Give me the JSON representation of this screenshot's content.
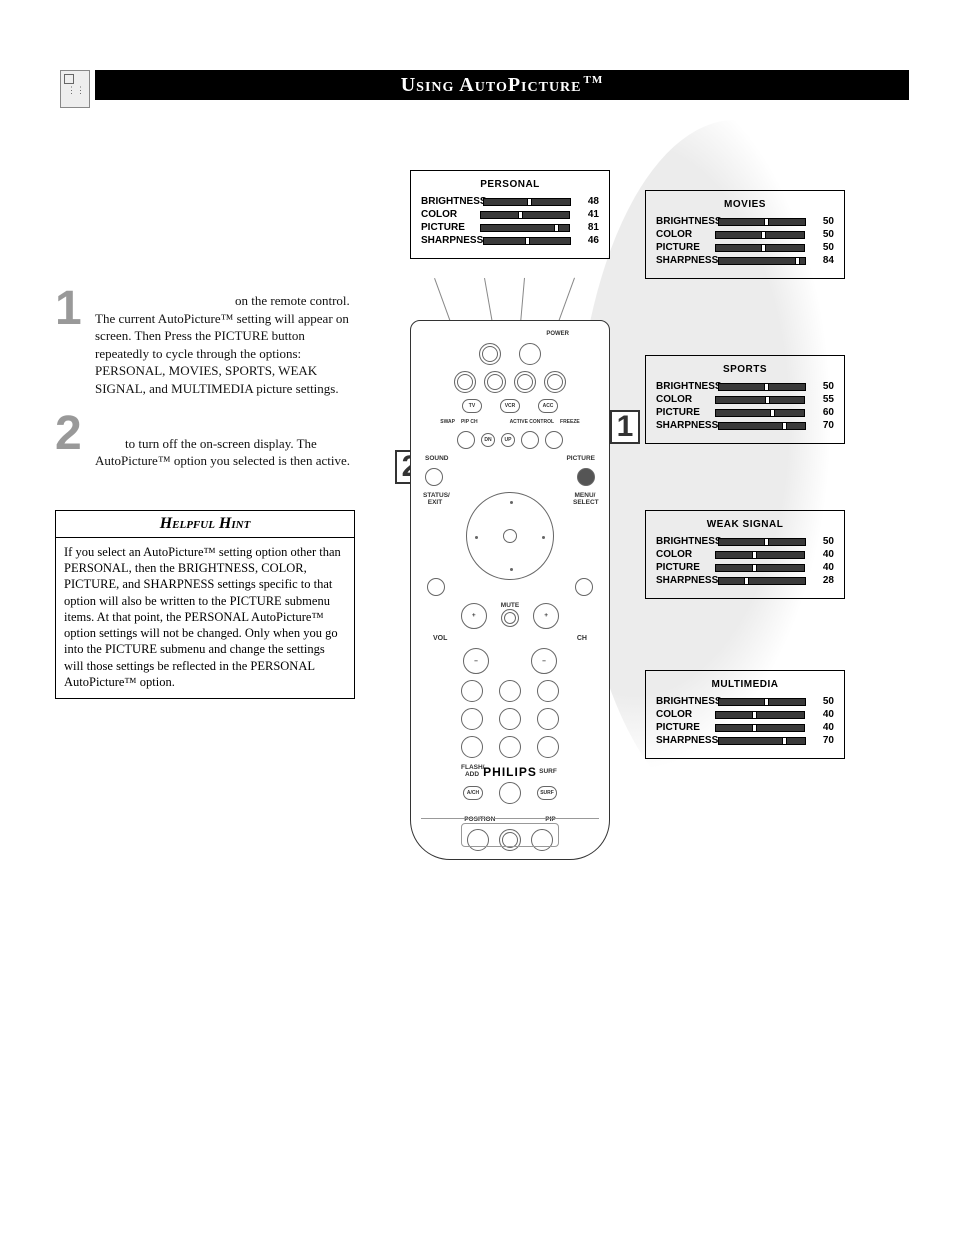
{
  "title": {
    "main": "Using AutoPicture",
    "tm": "TM"
  },
  "steps": {
    "s1": {
      "num": "1",
      "text_lead": "on the remote control. The current AutoPicture™ setting will appear on screen. Then Press the PICTURE button repeatedly to cycle through the options: PERSONAL, MOVIES, SPORTS, WEAK SIGNAL, and MULTIMEDIA picture settings."
    },
    "s2": {
      "num": "2",
      "text_lead": "to turn off the on-screen display. The AutoPicture™ option you selected is then active."
    }
  },
  "hint": {
    "title": "Helpful Hint",
    "body": "If you select an AutoPicture™ setting option other than PERSONAL, then the BRIGHTNESS, COLOR, PICTURE, and SHARPNESS settings specific to that option will also be written to the PICTURE submenu items. At that point, the PERSONAL AutoPicture™ option settings will not be changed. Only when you go into the PICTURE submenu and change the settings will those settings be reflected in the PERSONAL AutoPicture™ option."
  },
  "preset_labels": {
    "brightness": "BRIGHTNESS",
    "color": "COLOR",
    "picture": "PICTURE",
    "sharpness": "SHARPNESS"
  },
  "presets": {
    "personal": {
      "title": "PERSONAL",
      "brightness": 48,
      "color": 41,
      "picture": 81,
      "sharpness": 46
    },
    "movies": {
      "title": "MOVIES",
      "brightness": 50,
      "color": 50,
      "picture": 50,
      "sharpness": 84
    },
    "sports": {
      "title": "SPORTS",
      "brightness": 50,
      "color": 55,
      "picture": 60,
      "sharpness": 70
    },
    "weak": {
      "title": "WEAK SIGNAL",
      "brightness": 50,
      "color": 40,
      "picture": 40,
      "sharpness": 28
    },
    "multi": {
      "title": "MULTIMEDIA",
      "brightness": 50,
      "color": 40,
      "picture": 40,
      "sharpness": 70
    }
  },
  "remote": {
    "brand": "PHILIPS",
    "labels": {
      "power": "POWER",
      "tv": "TV",
      "vcr": "VCR",
      "acc": "ACC",
      "swap": "SWAP",
      "pipch": "PIP CH",
      "active": "ACTIVE CONTROL",
      "freeze": "FREEZE",
      "sound": "SOUND",
      "picture": "PICTURE",
      "status": "STATUS/ EXIT",
      "menu": "MENU/ SELECT",
      "mute": "MUTE",
      "vol": "VOL",
      "ch": "CH",
      "flash": "FLASH/ ADD",
      "surf": "SURF",
      "position": "POSITION",
      "pip": "PIP"
    }
  },
  "callouts": {
    "c1": "1",
    "c2": "2"
  },
  "colors": {
    "title_bg": "#000000",
    "title_fg": "#ffffff",
    "step_num": "#999999",
    "bar_bg": "#3a3a3a",
    "swoosh": "#eaeaea"
  }
}
